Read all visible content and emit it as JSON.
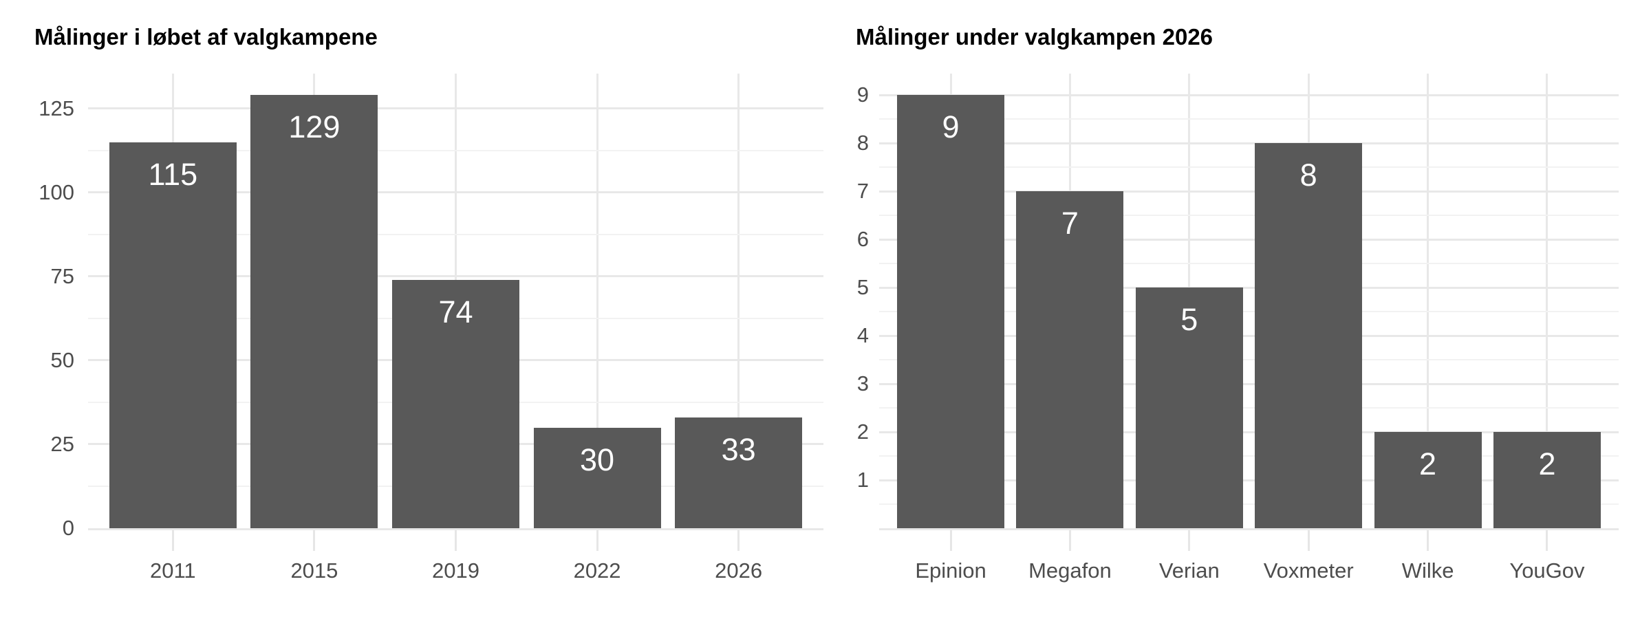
{
  "figure": {
    "kind": "dual-bar-chart",
    "background": "#ffffff"
  },
  "colors": {
    "background": "#ffffff",
    "bar_fill": "#595959",
    "value_label": "#ffffff",
    "axis_text": "#4d4d4d",
    "title_text": "#000000",
    "grid_major": "#e8e8e8",
    "grid_minor": "#f2f2f2",
    "axis_tick": "#e6e6e6"
  },
  "chart_data": [
    {
      "type": "bar",
      "title": "Målinger i løbet af valgkampene",
      "categories": [
        "2011",
        "2015",
        "2019",
        "2022",
        "2026"
      ],
      "values": [
        115,
        129,
        74,
        30,
        33
      ],
      "bar_labels": [
        "115",
        "129",
        "74",
        "30",
        "33"
      ],
      "xlabel": "",
      "ylabel": "",
      "y_ticks": [
        0,
        25,
        50,
        75,
        100,
        125
      ],
      "y_minor_ticks": [
        12.5,
        37.5,
        62.5,
        87.5,
        112.5
      ],
      "ylim": [
        0,
        135.45
      ],
      "grid": "major+minor",
      "legend": "none"
    },
    {
      "type": "bar",
      "title": "Målinger under valgkampen 2026",
      "categories": [
        "Epinion",
        "Megafon",
        "Verian",
        "Voxmeter",
        "Wilke",
        "YouGov"
      ],
      "values": [
        9,
        7,
        5,
        8,
        2,
        2
      ],
      "bar_labels": [
        "9",
        "7",
        "5",
        "8",
        "2",
        "2"
      ],
      "xlabel": "",
      "ylabel": "",
      "y_ticks": [
        1,
        2,
        3,
        4,
        5,
        6,
        7,
        8,
        9
      ],
      "y_minor_ticks": [
        0.5,
        1.5,
        2.5,
        3.5,
        4.5,
        5.5,
        6.5,
        7.5,
        8.5
      ],
      "ylim": [
        0,
        9.45
      ],
      "grid": "major+minor",
      "legend": "none"
    }
  ]
}
